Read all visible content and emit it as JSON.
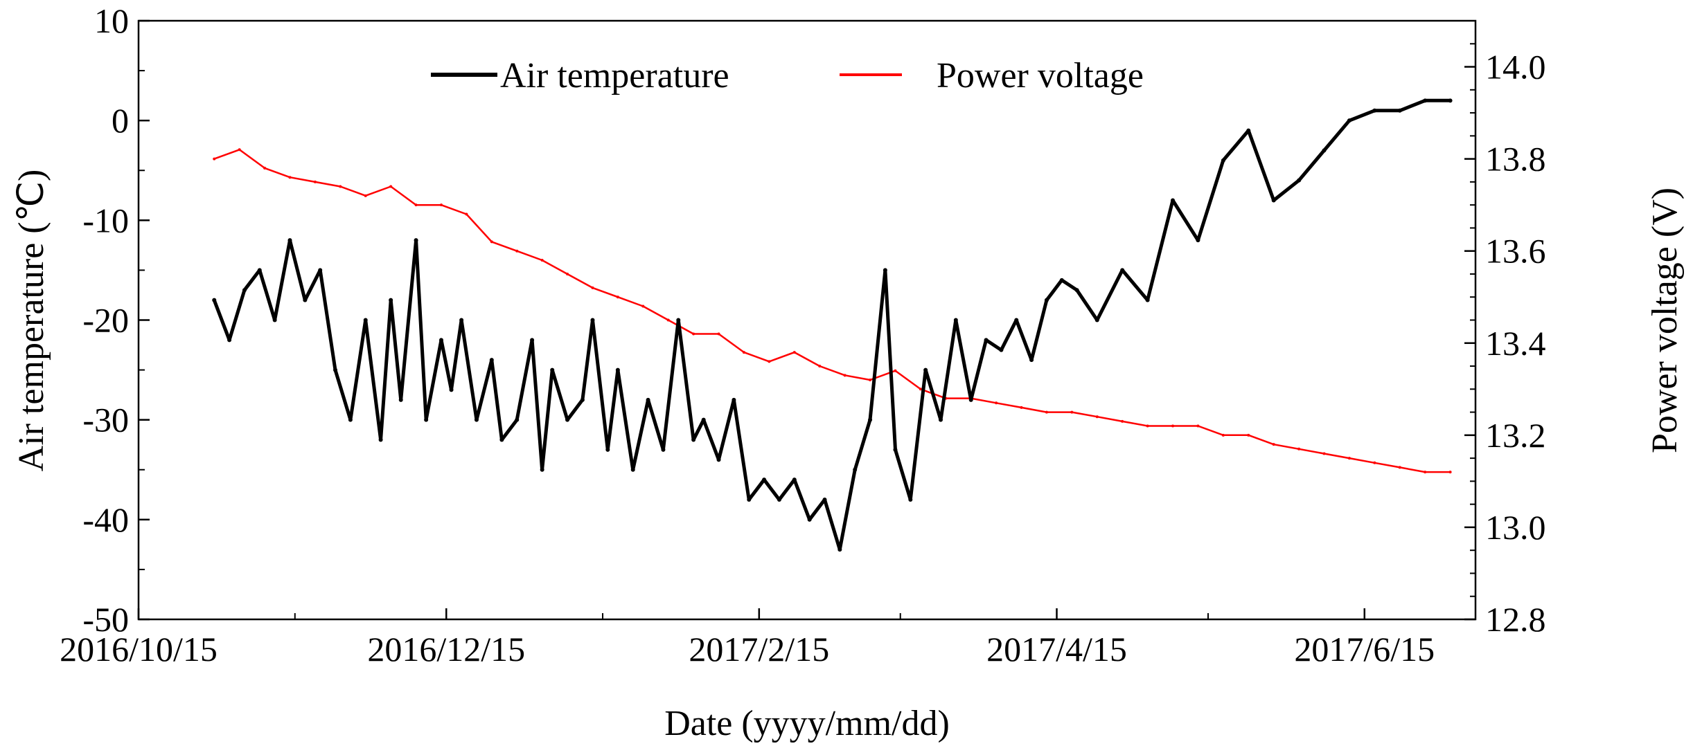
{
  "chart_data": {
    "type": "line",
    "title": "",
    "xlabel": "Date (yyyy/mm/dd)",
    "ylabel_left": "Air temperature (℃)",
    "ylabel_right": "Power voltage (V)",
    "x_start_date": "2016/10/15",
    "x_range_days": [
      0,
      265
    ],
    "x_ticks": [
      {
        "day": 0,
        "label": "2016/10/15"
      },
      {
        "day": 61,
        "label": "2016/12/15"
      },
      {
        "day": 123,
        "label": "2017/2/15"
      },
      {
        "day": 182,
        "label": "2017/4/15"
      },
      {
        "day": 243,
        "label": "2017/6/15"
      }
    ],
    "x_minor_ticks_days": [
      31,
      92,
      151,
      212
    ],
    "ylim_left": [
      -50,
      10
    ],
    "ylim_right": [
      12.8,
      14.1
    ],
    "y_ticks_left": [
      -50,
      -40,
      -30,
      -20,
      -10,
      0,
      10
    ],
    "y_ticks_right": [
      12.8,
      13.0,
      13.2,
      13.4,
      13.6,
      13.8,
      14.0
    ],
    "legend": [
      {
        "name": "Air temperature",
        "color": "#000000"
      },
      {
        "name": "Power voltage",
        "color": "#ff0000"
      }
    ],
    "legend_position": "top-center",
    "series": [
      {
        "name": "Air temperature",
        "axis": "left",
        "color": "#000000",
        "days": [
          15,
          18,
          21,
          24,
          27,
          30,
          33,
          36,
          39,
          42,
          45,
          48,
          50,
          52,
          55,
          57,
          60,
          62,
          64,
          67,
          70,
          72,
          75,
          78,
          80,
          82,
          85,
          88,
          90,
          93,
          95,
          98,
          101,
          104,
          107,
          110,
          112,
          115,
          118,
          121,
          124,
          127,
          130,
          133,
          136,
          139,
          142,
          145,
          148,
          150,
          153,
          156,
          159,
          162,
          165,
          168,
          171,
          174,
          177,
          180,
          183,
          186,
          190,
          195,
          200,
          205,
          210,
          215,
          220,
          225,
          230,
          235,
          240,
          245,
          250,
          255,
          260
        ],
        "values": [
          -18,
          -22,
          -17,
          -15,
          -20,
          -12,
          -18,
          -15,
          -25,
          -30,
          -20,
          -32,
          -18,
          -28,
          -12,
          -30,
          -22,
          -27,
          -20,
          -30,
          -24,
          -32,
          -30,
          -22,
          -35,
          -25,
          -30,
          -28,
          -20,
          -33,
          -25,
          -35,
          -28,
          -33,
          -20,
          -32,
          -30,
          -34,
          -28,
          -38,
          -36,
          -38,
          -36,
          -40,
          -38,
          -43,
          -35,
          -30,
          -15,
          -33,
          -38,
          -25,
          -30,
          -20,
          -28,
          -22,
          -23,
          -20,
          -24,
          -18,
          -16,
          -17,
          -20,
          -15,
          -18,
          -8,
          -12,
          -4,
          -1,
          -8,
          -6,
          -3,
          0,
          1,
          1,
          2,
          2
        ]
      },
      {
        "name": "Power voltage",
        "axis": "right",
        "color": "#ff0000",
        "days": [
          15,
          20,
          25,
          30,
          35,
          40,
          45,
          50,
          55,
          60,
          65,
          70,
          75,
          80,
          85,
          90,
          95,
          100,
          105,
          110,
          115,
          120,
          125,
          130,
          135,
          140,
          145,
          150,
          155,
          160,
          165,
          170,
          175,
          180,
          185,
          190,
          195,
          200,
          205,
          210,
          215,
          220,
          225,
          230,
          235,
          240,
          245,
          250,
          255,
          260
        ],
        "values": [
          13.8,
          13.82,
          13.78,
          13.76,
          13.75,
          13.74,
          13.72,
          13.74,
          13.7,
          13.7,
          13.68,
          13.62,
          13.6,
          13.58,
          13.55,
          13.52,
          13.5,
          13.48,
          13.45,
          13.42,
          13.42,
          13.38,
          13.36,
          13.38,
          13.35,
          13.33,
          13.32,
          13.34,
          13.3,
          13.28,
          13.28,
          13.27,
          13.26,
          13.25,
          13.25,
          13.24,
          13.23,
          13.22,
          13.22,
          13.22,
          13.2,
          13.2,
          13.18,
          13.17,
          13.16,
          13.15,
          13.14,
          13.13,
          13.12,
          13.12
        ]
      }
    ]
  }
}
